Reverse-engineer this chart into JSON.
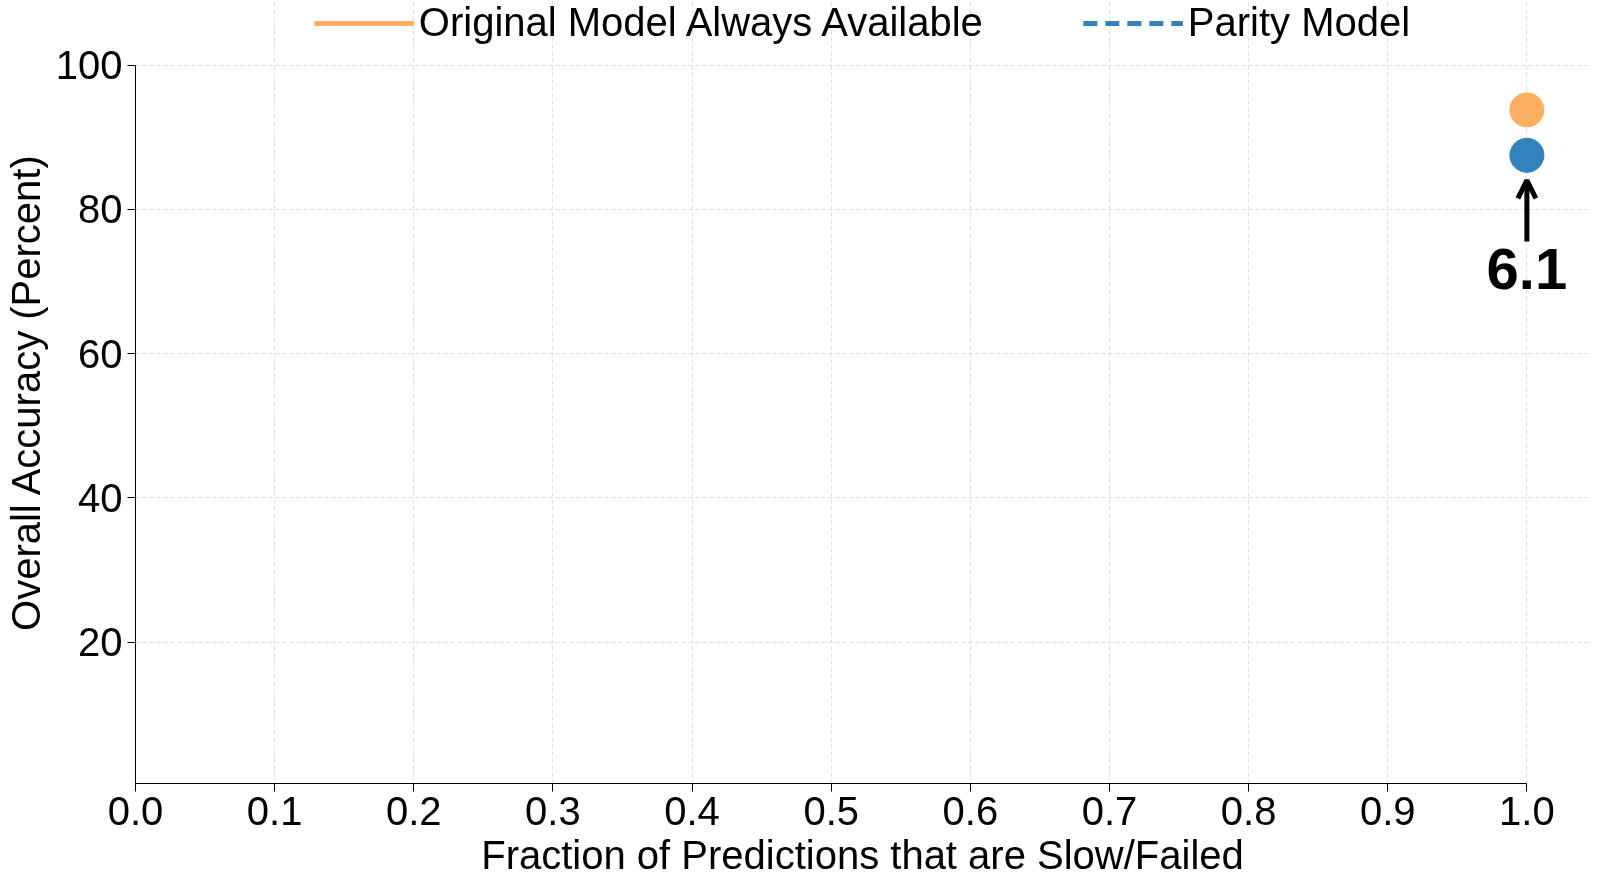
{
  "chart_data": {
    "type": "line",
    "xlabel": "Fraction of Predictions that are Slow/Failed",
    "ylabel": "Overall Accuracy (Percent)",
    "series": [
      {
        "name": "Original Model Always Available",
        "color": "#fdae61",
        "x": [
          1.0
        ],
        "values": [
          93.8
        ],
        "line_style": "solid"
      },
      {
        "name": "Parity Model",
        "color": "#3182bd",
        "x": [
          1.0
        ],
        "values": [
          87.5
        ],
        "line_style": "dashed"
      }
    ],
    "annotations": [
      {
        "text": "6.1",
        "x": 1.0,
        "y": 87.5
      }
    ],
    "xlim": [
      0,
      1
    ],
    "ylim": [
      0.4,
      100
    ],
    "xticks": [
      {
        "value": 0,
        "label": "0.0"
      },
      {
        "value": 0.1,
        "label": "0.1"
      },
      {
        "value": 0.2,
        "label": "0.2"
      },
      {
        "value": 0.3,
        "label": "0.3"
      },
      {
        "value": 0.4,
        "label": "0.4"
      },
      {
        "value": 0.5,
        "label": "0.5"
      },
      {
        "value": 0.6,
        "label": "0.6"
      },
      {
        "value": 0.7,
        "label": "0.7"
      },
      {
        "value": 0.8,
        "label": "0.8"
      },
      {
        "value": 0.9,
        "label": "0.9"
      },
      {
        "value": 1,
        "label": "1.0"
      }
    ],
    "yticks": [
      20,
      40,
      60,
      80,
      100
    ],
    "grid": true,
    "legend": "top",
    "marker": "circle"
  }
}
